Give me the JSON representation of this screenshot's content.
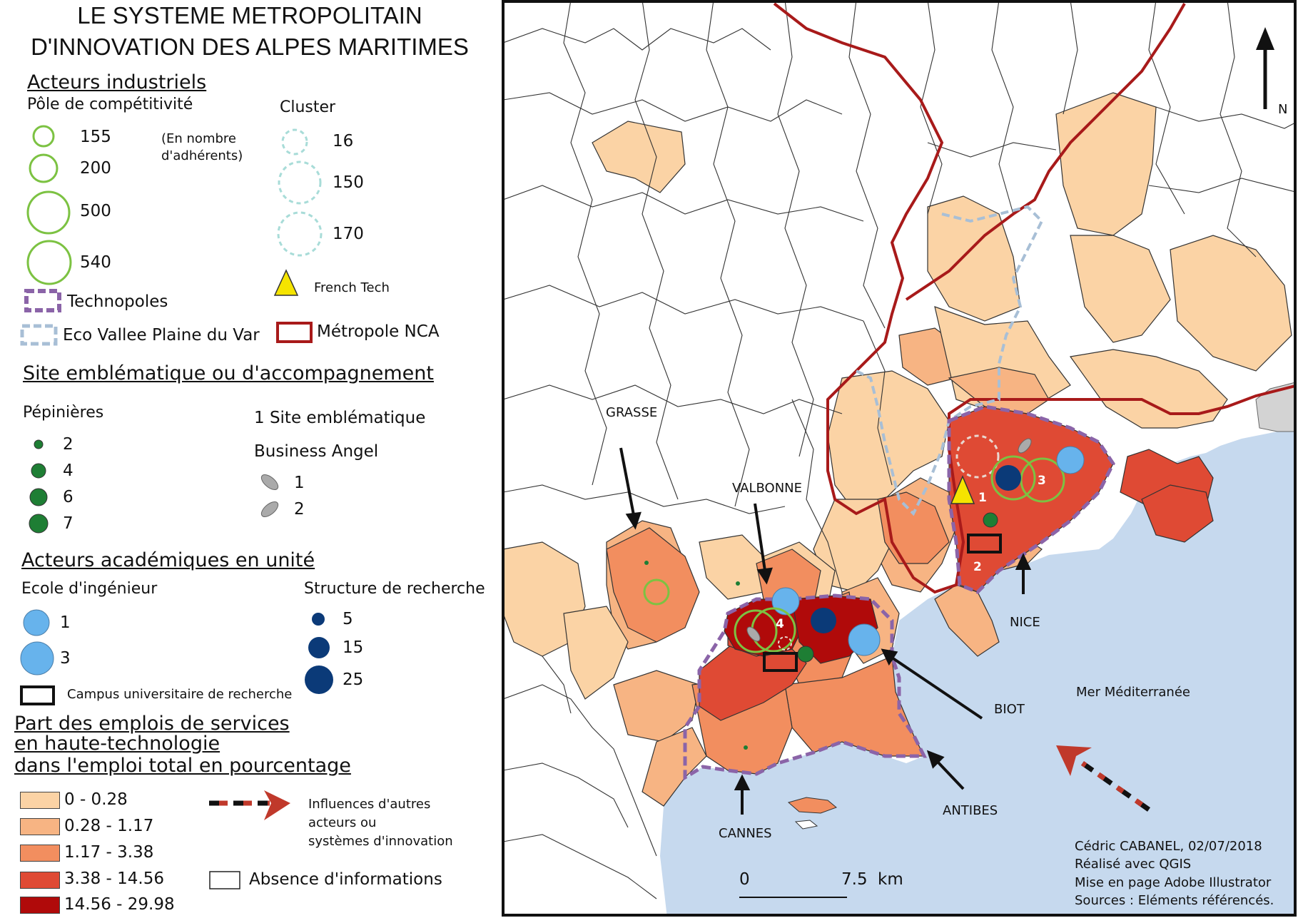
{
  "title": {
    "line1": "LE SYSTEME METROPOLITAIN",
    "line2": "D'INNOVATION DES ALPES MARITIMES"
  },
  "legend": {
    "industrial": {
      "heading": "Acteurs industriels",
      "pole_title": "Pôle de compétitivité",
      "pole_note_1": "(En nombre",
      "pole_note_2": "d'adhérents)",
      "pole_values": [
        "155",
        "200",
        "500",
        "540"
      ],
      "cluster_title": "Cluster",
      "cluster_values": [
        "16",
        "150",
        "170"
      ],
      "technopoles": "Technopoles",
      "french_tech": "French Tech",
      "eco_vallee": "Eco Vallee Plaine du Var",
      "metropole": "Métropole NCA"
    },
    "sites": {
      "heading": "Site emblématique ou d'accompagnement",
      "pepinieres_title": "Pépinières",
      "pepinieres_values": [
        "2",
        "4",
        "6",
        "7"
      ],
      "site_emblematique": "1  Site emblématique",
      "business_angel_title": "Business Angel",
      "business_angel_values": [
        "1",
        "2"
      ]
    },
    "academic": {
      "heading": "Acteurs académiques en unité",
      "ecole_title": "Ecole d'ingénieur",
      "ecole_values": [
        "1",
        "3"
      ],
      "recherche_title": "Structure de recherche",
      "recherche_values": [
        "5",
        "15",
        "25"
      ],
      "campus": "Campus universitaire de recherche"
    },
    "employment": {
      "heading_1": "Part des emplois de services",
      "heading_2": "en haute-technologie",
      "heading_3": "dans l'emploi total en pourcentage",
      "classes": [
        {
          "label": "0 - 0.28",
          "color": "#fbd3a5"
        },
        {
          "label": "0.28 - 1.17",
          "color": "#f7b483"
        },
        {
          "label": "1.17 - 3.38",
          "color": "#f28e5f"
        },
        {
          "label": "3.38 - 14.56",
          "color": "#df4a34"
        },
        {
          "label": "14.56 - 29.98",
          "color": "#b00a0a"
        }
      ],
      "influence_1": "Influences d'autres",
      "influence_2": "acteurs ou",
      "influence_3": "systèmes d'innovation",
      "absence": "Absence d'informations"
    }
  },
  "map": {
    "places": {
      "grasse": "GRASSE",
      "valbonne": "VALBONNE",
      "nice": "NICE",
      "biot": "BIOT",
      "antibes": "ANTIBES",
      "cannes": "CANNES",
      "mer": "Mer Méditerranée"
    },
    "north": "N",
    "scale_0": "0",
    "scale_75": "7.5",
    "scale_unit": "km",
    "site_numbers": [
      "1",
      "2",
      "3",
      "4"
    ],
    "credits": {
      "line1": "Cédric CABANEL, 02/07/2018",
      "line2": "Réalisé avec QGIS",
      "line3": "Mise en page Adobe Illustrator",
      "line4": "Sources : Eléments référencés."
    },
    "colors": {
      "sea": "#c6d9ee",
      "metropole": "#a81a1a",
      "technopole": "#8b64a8",
      "eco_vallee": "#a8bfd6",
      "pole": "#7cc242",
      "cluster": "#a8dcd8",
      "ecole": "#67b3ec",
      "recherche": "#0b3a78",
      "pepiniere": "#1e7e34",
      "french_tech": "#f5e400"
    }
  }
}
